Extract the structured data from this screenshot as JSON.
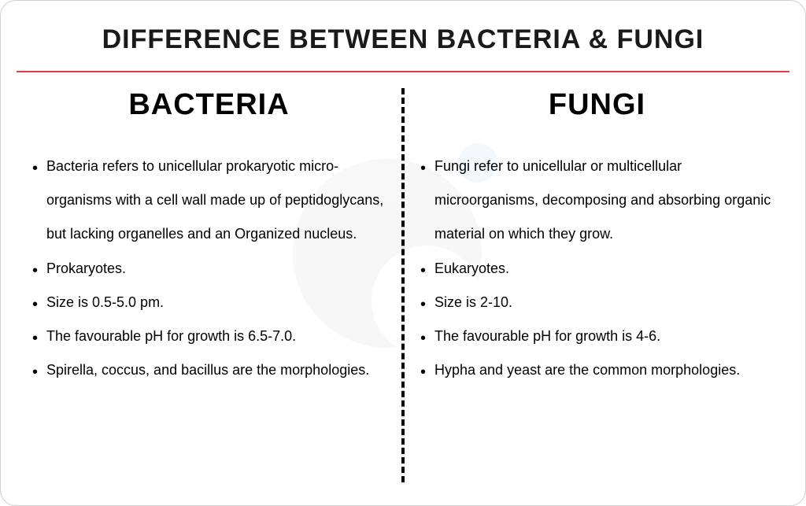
{
  "title": "DIFFERENCE BETWEEN BACTERIA & FUNGI",
  "columns": {
    "left": {
      "heading": "BACTERIA",
      "items": [
        "Bacteria refers to unicellular prokaryotic micro-organisms with a cell wall made up of peptidoglycans, but lacking organelles and an Organized nucleus.",
        "Prokaryotes.",
        "Size is 0.5-5.0 pm.",
        "The favourable pH for growth is 6.5-7.0.",
        "Spirella, coccus, and bacillus are the morphologies."
      ]
    },
    "right": {
      "heading": "FUNGI",
      "items": [
        "Fungi refer to unicellular or multicellular microorganisms, decomposing and absorbing organic material on which they grow.",
        "Eukaryotes.",
        "Size is 2-10.",
        "The favourable pH for growth is 4-6.",
        "Hypha and yeast are the common morphologies."
      ]
    }
  },
  "colors": {
    "title_text": "#1a1a1a",
    "body_text": "#000000",
    "hr_color": "#e63946",
    "border": "#d0d0d0",
    "background": "#ffffff"
  }
}
